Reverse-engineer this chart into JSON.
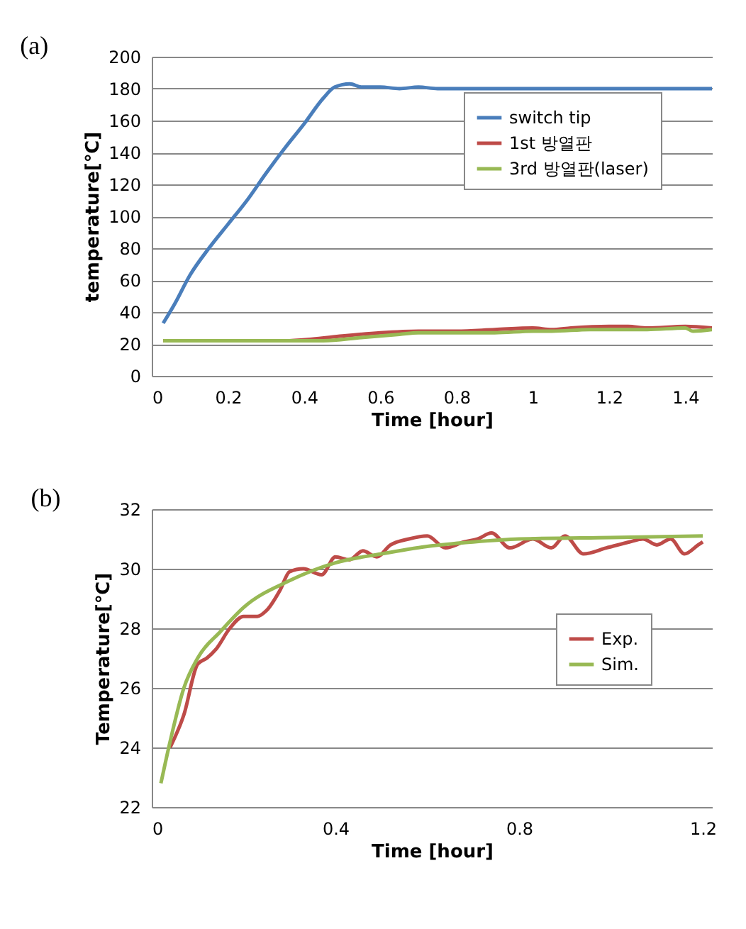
{
  "chart_data": [
    {
      "type": "line",
      "title": "(a)",
      "xlabel": "Time [hour]",
      "ylabel": "temperature[℃]",
      "xlim": [
        0,
        1.47
      ],
      "xticks": [
        0,
        0.2,
        0.4,
        0.6,
        0.8,
        1,
        1.2,
        1.4
      ],
      "ylim": [
        0,
        200
      ],
      "yticks": [
        0,
        20,
        40,
        60,
        80,
        100,
        120,
        140,
        160,
        180,
        200
      ],
      "grid": "y",
      "legend": "top right",
      "series": [
        {
          "name": "switch tip",
          "color": "#4a7ebb",
          "x": [
            0.03,
            0.06,
            0.1,
            0.15,
            0.2,
            0.25,
            0.3,
            0.35,
            0.4,
            0.45,
            0.48,
            0.52,
            0.55,
            0.6,
            0.65,
            0.7,
            0.75,
            1.47
          ],
          "values": [
            33,
            45,
            63,
            80,
            95,
            110,
            127,
            143,
            158,
            174,
            181,
            183,
            181,
            181,
            180,
            181,
            180,
            180
          ]
        },
        {
          "name": "1st 방열판",
          "color": "#be4b48",
          "x": [
            0.03,
            0.3,
            0.35,
            0.42,
            0.5,
            0.6,
            0.7,
            0.8,
            0.9,
            1.0,
            1.05,
            1.1,
            1.2,
            1.25,
            1.3,
            1.4,
            1.47
          ],
          "values": [
            22,
            22,
            22,
            23,
            25,
            27,
            28,
            28,
            29,
            30,
            29,
            30,
            31,
            31,
            30,
            31,
            30
          ]
        },
        {
          "name": "3rd 방열판(laser)",
          "color": "#98b954",
          "x": [
            0.03,
            0.4,
            0.45,
            0.55,
            0.65,
            0.7,
            0.8,
            0.9,
            1.0,
            1.05,
            1.15,
            1.3,
            1.4,
            1.42,
            1.47
          ],
          "values": [
            22,
            22,
            22,
            24,
            26,
            27,
            27,
            27,
            28,
            28,
            29,
            29,
            30,
            28,
            29
          ]
        }
      ]
    },
    {
      "type": "line",
      "title": "(b)",
      "xlabel": "Time [hour]",
      "ylabel": "Temperature[℃]",
      "xlim": [
        0,
        1.22
      ],
      "xticks": [
        0,
        0.4,
        0.8,
        1.2
      ],
      "ylim": [
        22,
        32
      ],
      "yticks": [
        22,
        24,
        26,
        28,
        30,
        32
      ],
      "grid": "y",
      "legend": "right",
      "series": [
        {
          "name": "Exp.",
          "color": "#be4b48",
          "x": [
            0.04,
            0.07,
            0.1,
            0.12,
            0.14,
            0.17,
            0.2,
            0.23,
            0.25,
            0.28,
            0.3,
            0.33,
            0.37,
            0.4,
            0.43,
            0.46,
            0.49,
            0.52,
            0.56,
            0.6,
            0.64,
            0.68,
            0.71,
            0.74,
            0.78,
            0.83,
            0.87,
            0.9,
            0.94,
            0.99,
            1.04,
            1.07,
            1.1,
            1.13,
            1.16,
            1.19,
            1.2
          ],
          "values": [
            24.0,
            25.1,
            26.8,
            27.0,
            27.3,
            28.0,
            28.4,
            28.4,
            28.6,
            29.3,
            29.9,
            30.0,
            29.8,
            30.4,
            30.3,
            30.6,
            30.4,
            30.8,
            31.0,
            31.1,
            30.7,
            30.9,
            31.0,
            31.2,
            30.7,
            31.0,
            30.7,
            31.1,
            30.5,
            30.7,
            30.9,
            31.0,
            30.8,
            31.0,
            30.5,
            30.8,
            30.9
          ]
        },
        {
          "name": "Sim.",
          "color": "#98b954",
          "x": [
            0.02,
            0.04,
            0.07,
            0.1,
            0.15,
            0.2,
            0.3,
            0.4,
            0.5,
            0.6,
            0.7,
            0.8,
            1.0,
            1.2
          ],
          "values": [
            22.8,
            24.2,
            26.0,
            27.0,
            27.9,
            28.7,
            29.6,
            30.2,
            30.5,
            30.75,
            30.9,
            31.0,
            31.05,
            31.1
          ]
        }
      ]
    }
  ]
}
